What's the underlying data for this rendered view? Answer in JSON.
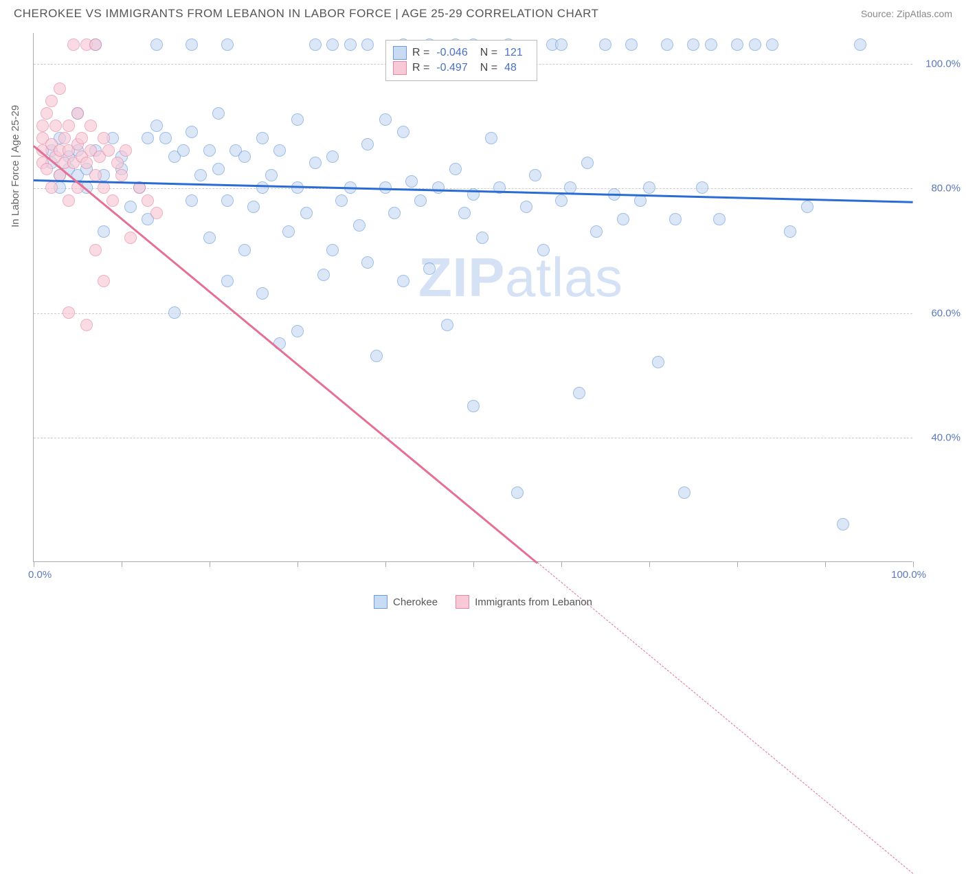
{
  "header": {
    "title": "CHEROKEE VS IMMIGRANTS FROM LEBANON IN LABOR FORCE | AGE 25-29 CORRELATION CHART",
    "source": "Source: ZipAtlas.com"
  },
  "watermark": {
    "part1": "ZIP",
    "part2": "atlas"
  },
  "chart": {
    "type": "scatter",
    "y_axis_title": "In Labor Force | Age 25-29",
    "xlim": [
      0,
      100
    ],
    "ylim": [
      20,
      105
    ],
    "x_tick_positions": [
      0,
      10,
      20,
      30,
      40,
      50,
      60,
      70,
      80,
      90,
      100
    ],
    "x_label_start": "0.0%",
    "x_label_end": "100.0%",
    "y_ticks": [
      {
        "v": 40,
        "label": "40.0%"
      },
      {
        "v": 60,
        "label": "60.0%"
      },
      {
        "v": 80,
        "label": "80.0%"
      },
      {
        "v": 100,
        "label": "100.0%"
      }
    ],
    "grid_color": "#cccccc",
    "background_color": "#ffffff",
    "series": [
      {
        "name": "Cherokee",
        "fill": "#c9dbf3",
        "stroke": "#6a9bd8",
        "opacity": 0.65,
        "marker_radius": 9,
        "trend": {
          "y_at_x0": 81.5,
          "y_at_x100": 78.0,
          "color": "#2a6bd4",
          "width": 3
        },
        "stats": {
          "R": "-0.046",
          "N": "121"
        },
        "points": [
          [
            2,
            84
          ],
          [
            2,
            86
          ],
          [
            3,
            82
          ],
          [
            3,
            88
          ],
          [
            3,
            80
          ],
          [
            4,
            83
          ],
          [
            4,
            85
          ],
          [
            5,
            86
          ],
          [
            5,
            82
          ],
          [
            5,
            92
          ],
          [
            6,
            83
          ],
          [
            6,
            80
          ],
          [
            7,
            86
          ],
          [
            7,
            103
          ],
          [
            8,
            82
          ],
          [
            8,
            73
          ],
          [
            9,
            88
          ],
          [
            10,
            83
          ],
          [
            10,
            85
          ],
          [
            11,
            77
          ],
          [
            12,
            80
          ],
          [
            13,
            88
          ],
          [
            13,
            75
          ],
          [
            14,
            90
          ],
          [
            14,
            103
          ],
          [
            15,
            88
          ],
          [
            16,
            60
          ],
          [
            16,
            85
          ],
          [
            17,
            86
          ],
          [
            18,
            89
          ],
          [
            18,
            78
          ],
          [
            19,
            82
          ],
          [
            20,
            86
          ],
          [
            20,
            72
          ],
          [
            21,
            83
          ],
          [
            21,
            92
          ],
          [
            22,
            65
          ],
          [
            22,
            78
          ],
          [
            23,
            86
          ],
          [
            24,
            85
          ],
          [
            24,
            70
          ],
          [
            25,
            77
          ],
          [
            26,
            88
          ],
          [
            26,
            80
          ],
          [
            27,
            82
          ],
          [
            28,
            86
          ],
          [
            28,
            55
          ],
          [
            29,
            73
          ],
          [
            30,
            80
          ],
          [
            30,
            91
          ],
          [
            31,
            76
          ],
          [
            32,
            103
          ],
          [
            32,
            84
          ],
          [
            33,
            66
          ],
          [
            34,
            70
          ],
          [
            34,
            85
          ],
          [
            35,
            78
          ],
          [
            36,
            103
          ],
          [
            36,
            80
          ],
          [
            37,
            74
          ],
          [
            38,
            87
          ],
          [
            38,
            68
          ],
          [
            39,
            53
          ],
          [
            40,
            80
          ],
          [
            40,
            91
          ],
          [
            41,
            76
          ],
          [
            42,
            89
          ],
          [
            42,
            65
          ],
          [
            43,
            81
          ],
          [
            44,
            78
          ],
          [
            45,
            103
          ],
          [
            45,
            67
          ],
          [
            46,
            80
          ],
          [
            47,
            58
          ],
          [
            48,
            83
          ],
          [
            49,
            76
          ],
          [
            50,
            79
          ],
          [
            50,
            45
          ],
          [
            51,
            72
          ],
          [
            52,
            88
          ],
          [
            53,
            80
          ],
          [
            54,
            103
          ],
          [
            55,
            31
          ],
          [
            56,
            77
          ],
          [
            57,
            82
          ],
          [
            58,
            70
          ],
          [
            59,
            103
          ],
          [
            60,
            78
          ],
          [
            61,
            80
          ],
          [
            62,
            47
          ],
          [
            63,
            84
          ],
          [
            64,
            73
          ],
          [
            65,
            103
          ],
          [
            66,
            79
          ],
          [
            67,
            75
          ],
          [
            68,
            103
          ],
          [
            69,
            78
          ],
          [
            70,
            80
          ],
          [
            71,
            52
          ],
          [
            72,
            103
          ],
          [
            73,
            75
          ],
          [
            74,
            31
          ],
          [
            75,
            103
          ],
          [
            76,
            80
          ],
          [
            77,
            103
          ],
          [
            78,
            75
          ],
          [
            80,
            103
          ],
          [
            82,
            103
          ],
          [
            84,
            103
          ],
          [
            86,
            73
          ],
          [
            88,
            77
          ],
          [
            92,
            26
          ],
          [
            94,
            103
          ],
          [
            60,
            103
          ],
          [
            50,
            103
          ],
          [
            48,
            103
          ],
          [
            42,
            103
          ],
          [
            38,
            103
          ],
          [
            34,
            103
          ],
          [
            30,
            57
          ],
          [
            26,
            63
          ],
          [
            22,
            103
          ],
          [
            18,
            103
          ]
        ]
      },
      {
        "name": "Immigrants from Lebanon",
        "fill": "#f8c9d7",
        "stroke": "#e387a5",
        "opacity": 0.65,
        "marker_radius": 9,
        "trend": {
          "y_at_x0": 87.0,
          "y_at_x100": -30.0,
          "color": "#e66f94",
          "width": 2.5
        },
        "stats": {
          "R": "-0.497",
          "N": "48"
        },
        "points": [
          [
            1,
            86
          ],
          [
            1,
            88
          ],
          [
            1,
            90
          ],
          [
            1,
            84
          ],
          [
            1.5,
            92
          ],
          [
            1.5,
            83
          ],
          [
            2,
            87
          ],
          [
            2,
            80
          ],
          [
            2,
            94
          ],
          [
            2.5,
            85
          ],
          [
            2.5,
            90
          ],
          [
            3,
            86
          ],
          [
            3,
            96
          ],
          [
            3,
            82
          ],
          [
            3.5,
            88
          ],
          [
            3.5,
            84
          ],
          [
            4,
            90
          ],
          [
            4,
            86
          ],
          [
            4,
            78
          ],
          [
            4.5,
            103
          ],
          [
            4.5,
            84
          ],
          [
            5,
            87
          ],
          [
            5,
            92
          ],
          [
            5,
            80
          ],
          [
            5.5,
            85
          ],
          [
            5.5,
            88
          ],
          [
            6,
            103
          ],
          [
            6,
            84
          ],
          [
            6.5,
            86
          ],
          [
            6.5,
            90
          ],
          [
            7,
            82
          ],
          [
            7,
            103
          ],
          [
            7.5,
            85
          ],
          [
            8,
            88
          ],
          [
            8,
            80
          ],
          [
            8.5,
            86
          ],
          [
            9,
            78
          ],
          [
            9.5,
            84
          ],
          [
            10,
            82
          ],
          [
            10.5,
            86
          ],
          [
            11,
            72
          ],
          [
            12,
            80
          ],
          [
            13,
            78
          ],
          [
            14,
            76
          ],
          [
            6,
            58
          ],
          [
            7,
            70
          ],
          [
            4,
            60
          ],
          [
            8,
            65
          ]
        ]
      }
    ]
  },
  "stat_box": {
    "r_label": "R =",
    "n_label": "N ="
  },
  "bottom_legend": {
    "items": [
      {
        "label": "Cherokee",
        "fill": "#c9dbf3",
        "stroke": "#6a9bd8"
      },
      {
        "label": "Immigrants from Lebanon",
        "fill": "#f8c9d7",
        "stroke": "#e387a5"
      }
    ]
  }
}
